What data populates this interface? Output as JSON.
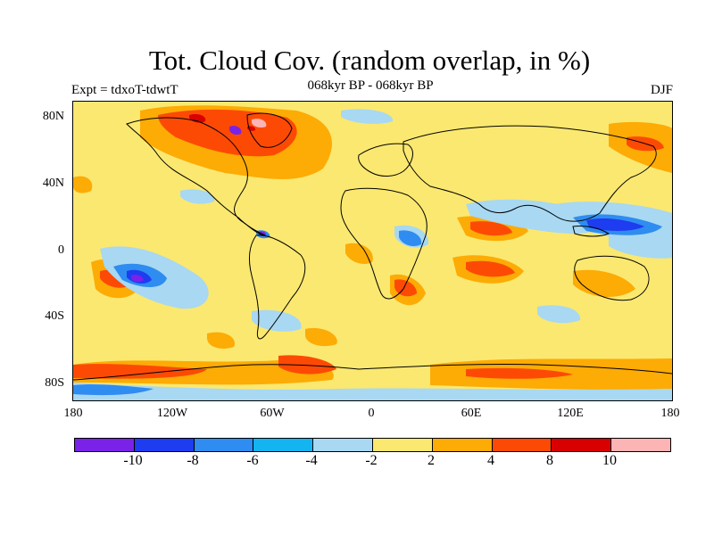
{
  "title": "Tot. Cloud Cov. (random overlap, in %)",
  "subtitle_left": "Expt = tdxoT-tdwtT",
  "subtitle_center": "068kyr BP - 068kyr BP",
  "subtitle_right": "DJF",
  "map": {
    "projection": "cylindrical equidistant",
    "lon_range": [
      -180,
      180
    ],
    "lat_range": [
      -90,
      90
    ],
    "y_tick_labels": [
      "80N",
      "40N",
      "0",
      "40S",
      "80S"
    ],
    "x_tick_labels": [
      "180",
      "120W",
      "60W",
      "0",
      "60E",
      "120E",
      "180"
    ]
  },
  "colorbar": {
    "levels": [
      "-10",
      "-8",
      "-6",
      "-4",
      "-2",
      "2",
      "4",
      "8",
      "10"
    ],
    "colors": [
      "#7a22e8",
      "#1e3cf0",
      "#2f8cf0",
      "#14b4f0",
      "#a8d8f2",
      "#fbe870",
      "#fdab05",
      "#fc4a05",
      "#d80000",
      "#fcb4b4"
    ]
  }
}
